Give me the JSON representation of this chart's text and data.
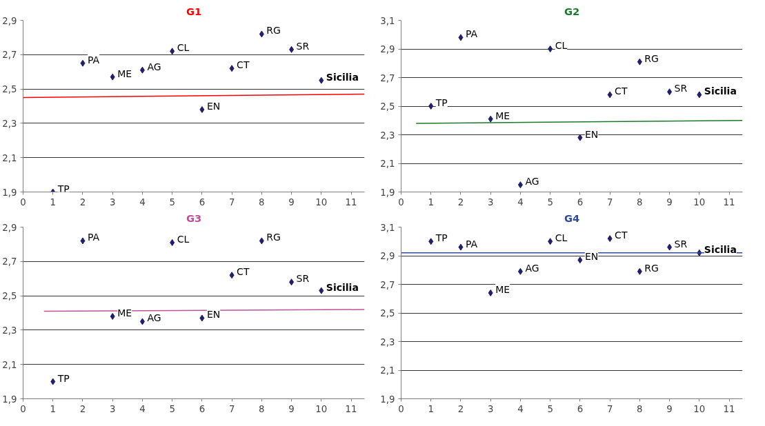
{
  "chart_data": [
    {
      "type": "scatter",
      "title": "G1",
      "x": [
        1,
        2,
        3,
        4,
        5,
        6,
        7,
        8,
        9,
        10
      ],
      "grid": "y",
      "xlim": [
        0,
        11.45
      ],
      "xticks": [
        0,
        1,
        2,
        3,
        4,
        5,
        6,
        7,
        8,
        9,
        10,
        11
      ],
      "ylim": [
        1.9,
        2.9
      ],
      "yticks": [
        {
          "value": 1.9,
          "label": "1,9"
        },
        {
          "value": 2.1,
          "label": "2,1"
        },
        {
          "value": 2.3,
          "label": "2,3"
        },
        {
          "value": 2.5,
          "label": "2,5"
        },
        {
          "value": 2.7,
          "label": "2,7"
        },
        {
          "value": 2.9,
          "label": "2,9"
        }
      ],
      "series": [
        {
          "type": "scatter",
          "marker": "diamond",
          "color": "#1f1f6b",
          "values": [
            1.9,
            2.65,
            2.57,
            2.61,
            2.72,
            2.38,
            2.62,
            2.82,
            2.73,
            2.55
          ]
        },
        {
          "type": "line",
          "color": "#ff0000",
          "x": [
            0,
            11.45
          ],
          "values": [
            2.45,
            2.47
          ]
        }
      ],
      "annotations": [
        {
          "text": "TP",
          "x": 1,
          "y": 1.9
        },
        {
          "text": "PA",
          "x": 2,
          "y": 2.65
        },
        {
          "text": "ME",
          "x": 3,
          "y": 2.57
        },
        {
          "text": "AG",
          "x": 4,
          "y": 2.61
        },
        {
          "text": "CL",
          "x": 5,
          "y": 2.72
        },
        {
          "text": "EN",
          "x": 6,
          "y": 2.38
        },
        {
          "text": "CT",
          "x": 7,
          "y": 2.62
        },
        {
          "text": "RG",
          "x": 8,
          "y": 2.82
        },
        {
          "text": "SR",
          "x": 9,
          "y": 2.73
        },
        {
          "text": "Sicilia",
          "x": 10,
          "y": 2.55
        }
      ]
    },
    {
      "type": "scatter",
      "title": "G2",
      "x": [
        1,
        2,
        3,
        4,
        5,
        6,
        7,
        8,
        9,
        10
      ],
      "grid": "y",
      "xlim": [
        0,
        11.45
      ],
      "xticks": [
        0,
        1,
        2,
        3,
        4,
        5,
        6,
        7,
        8,
        9,
        10,
        11
      ],
      "ylim": [
        1.9,
        3.1
      ],
      "yticks": [
        {
          "value": 1.9,
          "label": "1,9"
        },
        {
          "value": 2.1,
          "label": "2,1"
        },
        {
          "value": 2.3,
          "label": "2,3"
        },
        {
          "value": 2.5,
          "label": "2,5"
        },
        {
          "value": 2.7,
          "label": "2,7"
        },
        {
          "value": 2.9,
          "label": "2,9"
        },
        {
          "value": 3.1,
          "label": "3,1"
        }
      ],
      "series": [
        {
          "type": "scatter",
          "marker": "diamond",
          "color": "#1f1f6b",
          "values": [
            2.5,
            2.98,
            2.41,
            1.95,
            2.9,
            2.28,
            2.58,
            2.81,
            2.6,
            2.58
          ]
        },
        {
          "type": "line",
          "color": "#1a7a2a",
          "x": [
            0.5,
            11.45
          ],
          "values": [
            2.38,
            2.4
          ]
        }
      ],
      "annotations": [
        {
          "text": "TP",
          "x": 1,
          "y": 2.5
        },
        {
          "text": "PA",
          "x": 2,
          "y": 2.98
        },
        {
          "text": "ME",
          "x": 3,
          "y": 2.41
        },
        {
          "text": "AG",
          "x": 4,
          "y": 1.95
        },
        {
          "text": "CL",
          "x": 5,
          "y": 2.9
        },
        {
          "text": "EN",
          "x": 6,
          "y": 2.28
        },
        {
          "text": "CT",
          "x": 7,
          "y": 2.58
        },
        {
          "text": "RG",
          "x": 8,
          "y": 2.81
        },
        {
          "text": "SR",
          "x": 9,
          "y": 2.6
        },
        {
          "text": "Sicilia",
          "x": 10,
          "y": 2.58
        }
      ]
    },
    {
      "type": "scatter",
      "title": "G3",
      "x": [
        1,
        2,
        3,
        4,
        5,
        6,
        7,
        8,
        9,
        10
      ],
      "grid": "y",
      "xlim": [
        0,
        11.45
      ],
      "xticks": [
        0,
        1,
        2,
        3,
        4,
        5,
        6,
        7,
        8,
        9,
        10,
        11
      ],
      "ylim": [
        1.9,
        2.9
      ],
      "yticks": [
        {
          "value": 1.9,
          "label": "1,9"
        },
        {
          "value": 2.1,
          "label": "2,1"
        },
        {
          "value": 2.3,
          "label": "2,3"
        },
        {
          "value": 2.5,
          "label": "2,5"
        },
        {
          "value": 2.7,
          "label": "2,7"
        },
        {
          "value": 2.9,
          "label": "2,9"
        }
      ],
      "series": [
        {
          "type": "scatter",
          "marker": "diamond",
          "color": "#1f1f6b",
          "values": [
            2.0,
            2.82,
            2.38,
            2.35,
            2.81,
            2.37,
            2.62,
            2.82,
            2.58,
            2.53
          ]
        },
        {
          "type": "line",
          "color": "#c0509a",
          "x": [
            0.7,
            11.45
          ],
          "values": [
            2.41,
            2.42
          ]
        }
      ],
      "annotations": [
        {
          "text": "TP",
          "x": 1,
          "y": 2.0
        },
        {
          "text": "PA",
          "x": 2,
          "y": 2.82
        },
        {
          "text": "ME",
          "x": 3,
          "y": 2.38
        },
        {
          "text": "AG",
          "x": 4,
          "y": 2.35
        },
        {
          "text": "CL",
          "x": 5,
          "y": 2.81
        },
        {
          "text": "EN",
          "x": 6,
          "y": 2.37
        },
        {
          "text": "CT",
          "x": 7,
          "y": 2.62
        },
        {
          "text": "RG",
          "x": 8,
          "y": 2.82
        },
        {
          "text": "SR",
          "x": 9,
          "y": 2.58
        },
        {
          "text": "Sicilia",
          "x": 10,
          "y": 2.53
        }
      ]
    },
    {
      "type": "scatter",
      "title": "G4",
      "x": [
        1,
        2,
        3,
        4,
        5,
        6,
        7,
        8,
        9,
        10
      ],
      "grid": "y",
      "xlim": [
        0,
        11.45
      ],
      "xticks": [
        0,
        1,
        2,
        3,
        4,
        5,
        6,
        7,
        8,
        9,
        10,
        11
      ],
      "ylim": [
        1.9,
        3.1
      ],
      "yticks": [
        {
          "value": 1.9,
          "label": "1,9"
        },
        {
          "value": 2.1,
          "label": "2,1"
        },
        {
          "value": 2.3,
          "label": "2,3"
        },
        {
          "value": 2.5,
          "label": "2,5"
        },
        {
          "value": 2.7,
          "label": "2,7"
        },
        {
          "value": 2.9,
          "label": "2,9"
        },
        {
          "value": 3.1,
          "label": "3,1"
        }
      ],
      "series": [
        {
          "type": "scatter",
          "marker": "diamond",
          "color": "#1f1f6b",
          "values": [
            3.0,
            2.96,
            2.64,
            2.79,
            3.0,
            2.87,
            3.02,
            2.79,
            2.96,
            2.92
          ]
        },
        {
          "type": "line",
          "color": "#2e4a9a",
          "x": [
            0,
            11.45
          ],
          "values": [
            2.92,
            2.92
          ]
        }
      ],
      "annotations": [
        {
          "text": "TP",
          "x": 1,
          "y": 3.0
        },
        {
          "text": "PA",
          "x": 2,
          "y": 2.96
        },
        {
          "text": "ME",
          "x": 3,
          "y": 2.64
        },
        {
          "text": "AG",
          "x": 4,
          "y": 2.79
        },
        {
          "text": "CL",
          "x": 5,
          "y": 3.0
        },
        {
          "text": "EN",
          "x": 6,
          "y": 2.87
        },
        {
          "text": "CT",
          "x": 7,
          "y": 3.02
        },
        {
          "text": "RG",
          "x": 8,
          "y": 2.79
        },
        {
          "text": "SR",
          "x": 9,
          "y": 2.96
        },
        {
          "text": "Sicilia",
          "x": 10,
          "y": 2.92
        }
      ]
    }
  ]
}
